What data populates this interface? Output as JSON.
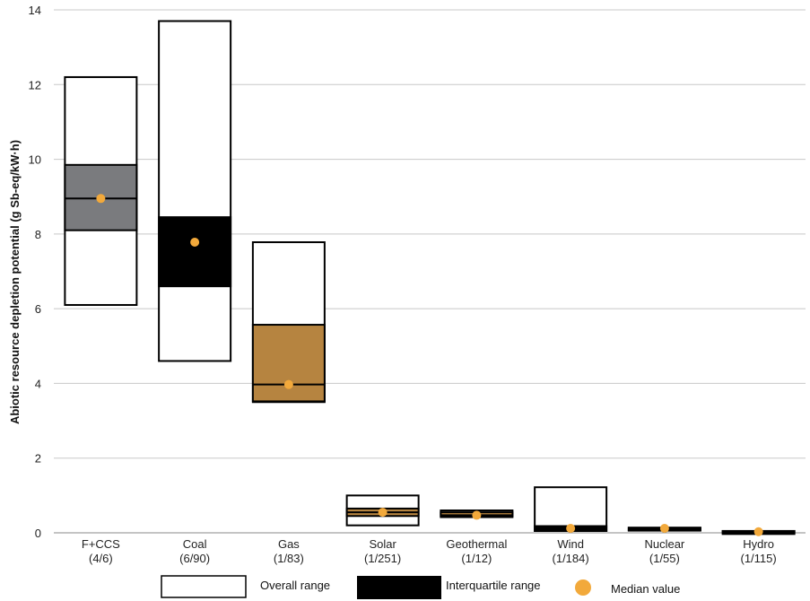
{
  "chart_data": {
    "type": "box",
    "ylabel": "Abiotic resource depletion potential (g Sb-eq/kW·h)",
    "ylim": [
      0,
      14
    ],
    "yticks": [
      0,
      2,
      4,
      6,
      8,
      10,
      12,
      14
    ],
    "grid": true,
    "categories": [
      {
        "name": "F+CCS",
        "sub": "(4/6)",
        "min": 6.1,
        "max": 12.2,
        "q1": 8.1,
        "q3": 9.85,
        "median": 8.95,
        "iqr_color": "#7a7b7e"
      },
      {
        "name": "Coal",
        "sub": "(6/90)",
        "min": 4.6,
        "max": 13.7,
        "q1": 6.6,
        "q3": 8.45,
        "median": 7.78,
        "iqr_color": "#000000"
      },
      {
        "name": "Gas",
        "sub": "(1/83)",
        "min": 3.5,
        "max": 7.78,
        "q1": 3.52,
        "q3": 5.57,
        "median": 3.97,
        "iqr_color": "#b68440"
      },
      {
        "name": "Solar",
        "sub": "(1/251)",
        "min": 0.2,
        "max": 1.0,
        "q1": 0.45,
        "q3": 0.65,
        "median": 0.55,
        "iqr_color": "#b68440"
      },
      {
        "name": "Geothermal",
        "sub": "(1/12)",
        "min": 0.42,
        "max": 0.6,
        "q1": 0.45,
        "q3": 0.55,
        "median": 0.47,
        "iqr_color": "#b68440"
      },
      {
        "name": "Wind",
        "sub": "(1/184)",
        "min": 0.05,
        "max": 1.22,
        "q1": 0.05,
        "q3": 0.18,
        "median": 0.12,
        "iqr_color": "#000000"
      },
      {
        "name": "Nuclear",
        "sub": "(1/55)",
        "min": 0.07,
        "max": 0.14,
        "q1": 0.08,
        "q3": 0.13,
        "median": 0.12,
        "iqr_color": "#000000"
      },
      {
        "name": "Hydro",
        "sub": "(1/115)",
        "min": 0.01,
        "max": 0.05,
        "q1": 0.01,
        "q3": 0.04,
        "median": 0.03,
        "iqr_color": "#000000"
      }
    ],
    "colors": {
      "median": "#f2a93b",
      "outline": "#000000",
      "grid": "#c8c8c8"
    }
  },
  "legend": [
    {
      "label": "Overall range",
      "kind": "overall"
    },
    {
      "label": "Interquartile range",
      "kind": "iqr"
    },
    {
      "label": "Median value",
      "kind": "median"
    }
  ]
}
